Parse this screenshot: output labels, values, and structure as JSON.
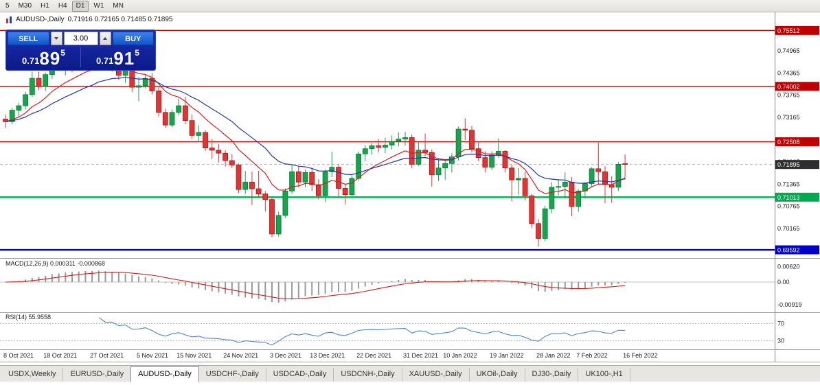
{
  "toolbar": {
    "periods": [
      "5",
      "M30",
      "H1",
      "H4",
      "D1",
      "W1",
      "MN"
    ],
    "active": "D1"
  },
  "title": {
    "symbol": "AUDUSD-,Daily",
    "ohlc": "0.71916 0.72165 0.71485 0.71895"
  },
  "trade_panel": {
    "sell_label": "SELL",
    "buy_label": "BUY",
    "volume": "3.00",
    "sell_price": {
      "small": "0.71",
      "big": "89",
      "sup": "5"
    },
    "buy_price": {
      "small": "0.71",
      "big": "91",
      "sup": "5"
    }
  },
  "tabs": {
    "items": [
      "USDX,Weekly",
      "EURUSD-,Daily",
      "AUDUSD-,Daily",
      "USDCHF-,Daily",
      "USDCAD-,Daily",
      "USDCNH-,Daily",
      "XAUUSD-,Daily",
      "UKOil-,Daily",
      "DJ30-,Daily",
      "UK100-,H1"
    ],
    "active_index": 2
  },
  "chart_data": {
    "type": "candlestick",
    "symbol": "AUDUSD",
    "timeframe": "Daily",
    "up_color": "#18a44c",
    "down_color": "#e13434",
    "price_axis_ticks": [
      "0.74965",
      "0.74365",
      "0.73765",
      "0.73165",
      "0.71965",
      "0.71365",
      "0.70765",
      "0.70165"
    ],
    "price_badges": [
      {
        "value": 0.75512,
        "label": "0.75512",
        "color": "#c00000"
      },
      {
        "value": 0.74002,
        "label": "0.74002",
        "color": "#c00000"
      },
      {
        "value": 0.72508,
        "label": "0.72508",
        "color": "#c00000"
      },
      {
        "value": 0.71895,
        "label": "0.71895",
        "color": "#2f2f2f"
      },
      {
        "value": 0.71013,
        "label": "0.71013",
        "color": "#00a84f"
      },
      {
        "value": 0.69592,
        "label": "0.69592",
        "color": "#0000c8"
      }
    ],
    "hlines": [
      {
        "value": 0.75512,
        "color": "#c00000",
        "w": 1.4
      },
      {
        "value": 0.74002,
        "color": "#c00000",
        "w": 1.4
      },
      {
        "value": 0.72508,
        "color": "#c00000",
        "w": 1.4
      },
      {
        "value": 0.71013,
        "color": "#00b050",
        "w": 2.4
      },
      {
        "value": 0.69592,
        "color": "#0000c8",
        "w": 2.4
      }
    ],
    "bid_price": 0.71895,
    "x_labels": [
      {
        "label": "8 Oct 2021",
        "i": 0
      },
      {
        "label": "18 Oct 2021",
        "i": 6
      },
      {
        "label": "27 Oct 2021",
        "i": 13
      },
      {
        "label": "5 Nov 2021",
        "i": 20
      },
      {
        "label": "15 Nov 2021",
        "i": 26
      },
      {
        "label": "24 Nov 2021",
        "i": 33
      },
      {
        "label": "3 Dec 2021",
        "i": 40
      },
      {
        "label": "13 Dec 2021",
        "i": 46
      },
      {
        "label": "22 Dec 2021",
        "i": 53
      },
      {
        "label": "31 Dec 2021",
        "i": 60
      },
      {
        "label": "10 Jan 2022",
        "i": 66
      },
      {
        "label": "19 Jan 2022",
        "i": 73
      },
      {
        "label": "28 Jan 2022",
        "i": 80
      },
      {
        "label": "7 Feb 2022",
        "i": 86
      },
      {
        "label": "16 Feb 2022",
        "i": 93
      }
    ],
    "candles": [
      [
        0.7312,
        0.7324,
        0.7288,
        0.7305
      ],
      [
        0.7305,
        0.7342,
        0.7298,
        0.7336
      ],
      [
        0.7336,
        0.7356,
        0.7318,
        0.7348
      ],
      [
        0.7348,
        0.7386,
        0.7338,
        0.7378
      ],
      [
        0.7378,
        0.744,
        0.7372,
        0.7422
      ],
      [
        0.7422,
        0.744,
        0.739,
        0.74
      ],
      [
        0.74,
        0.7438,
        0.7388,
        0.7432
      ],
      [
        0.7432,
        0.7475,
        0.742,
        0.7465
      ],
      [
        0.7465,
        0.748,
        0.7442,
        0.7452
      ],
      [
        0.7452,
        0.747,
        0.743,
        0.7464
      ],
      [
        0.7464,
        0.7472,
        0.7438,
        0.7462
      ],
      [
        0.7462,
        0.748,
        0.7448,
        0.7472
      ],
      [
        0.7472,
        0.7492,
        0.7456,
        0.748
      ],
      [
        0.748,
        0.7496,
        0.746,
        0.747
      ],
      [
        0.747,
        0.7512,
        0.7458,
        0.7502
      ],
      [
        0.7502,
        0.7518,
        0.7452,
        0.7462
      ],
      [
        0.7462,
        0.7472,
        0.744,
        0.7466
      ],
      [
        0.7466,
        0.747,
        0.7418,
        0.743
      ],
      [
        0.743,
        0.7455,
        0.741,
        0.7448
      ],
      [
        0.7448,
        0.7452,
        0.7385,
        0.7398
      ],
      [
        0.7398,
        0.7425,
        0.736,
        0.7402
      ],
      [
        0.7402,
        0.7432,
        0.7395,
        0.7422
      ],
      [
        0.7422,
        0.7436,
        0.7378,
        0.7388
      ],
      [
        0.7388,
        0.7398,
        0.7318,
        0.733
      ],
      [
        0.733,
        0.734,
        0.7288,
        0.7296
      ],
      [
        0.7296,
        0.7338,
        0.729,
        0.733
      ],
      [
        0.733,
        0.7368,
        0.7322,
        0.7348
      ],
      [
        0.7348,
        0.7372,
        0.7298,
        0.7308
      ],
      [
        0.7308,
        0.7325,
        0.7258,
        0.7268
      ],
      [
        0.7268,
        0.7296,
        0.725,
        0.7276
      ],
      [
        0.7276,
        0.7282,
        0.7226,
        0.7234
      ],
      [
        0.7234,
        0.7258,
        0.7204,
        0.7228
      ],
      [
        0.7228,
        0.7245,
        0.7195,
        0.722
      ],
      [
        0.722,
        0.7228,
        0.7184,
        0.72
      ],
      [
        0.72,
        0.7218,
        0.718,
        0.7188
      ],
      [
        0.7188,
        0.7192,
        0.7112,
        0.7122
      ],
      [
        0.7122,
        0.7172,
        0.711,
        0.7142
      ],
      [
        0.7142,
        0.717,
        0.708,
        0.7124
      ],
      [
        0.7124,
        0.7172,
        0.71,
        0.711
      ],
      [
        0.711,
        0.7118,
        0.7063,
        0.7095
      ],
      [
        0.7095,
        0.71,
        0.6993,
        0.7002
      ],
      [
        0.7002,
        0.7062,
        0.6995,
        0.7052
      ],
      [
        0.7052,
        0.7125,
        0.7045,
        0.7118
      ],
      [
        0.7118,
        0.7187,
        0.711,
        0.717
      ],
      [
        0.717,
        0.7185,
        0.7128,
        0.7142
      ],
      [
        0.7142,
        0.7176,
        0.7128,
        0.7168
      ],
      [
        0.7168,
        0.718,
        0.7118,
        0.7135
      ],
      [
        0.7135,
        0.715,
        0.7095,
        0.7105
      ],
      [
        0.7105,
        0.7176,
        0.7088,
        0.717
      ],
      [
        0.717,
        0.7224,
        0.7155,
        0.7182
      ],
      [
        0.7182,
        0.719,
        0.71,
        0.7125
      ],
      [
        0.7125,
        0.7135,
        0.7082,
        0.7108
      ],
      [
        0.7108,
        0.716,
        0.71,
        0.7152
      ],
      [
        0.7152,
        0.7225,
        0.7145,
        0.7218
      ],
      [
        0.7218,
        0.7242,
        0.7198,
        0.7232
      ],
      [
        0.7232,
        0.7248,
        0.7216,
        0.724
      ],
      [
        0.724,
        0.7258,
        0.7222,
        0.7236
      ],
      [
        0.7236,
        0.7262,
        0.722,
        0.7242
      ],
      [
        0.7242,
        0.7268,
        0.723,
        0.7252
      ],
      [
        0.7252,
        0.7276,
        0.7238,
        0.7258
      ],
      [
        0.7258,
        0.7278,
        0.724,
        0.7262
      ],
      [
        0.7262,
        0.727,
        0.718,
        0.719
      ],
      [
        0.719,
        0.725,
        0.7185,
        0.7228
      ],
      [
        0.7228,
        0.7273,
        0.7212,
        0.7222
      ],
      [
        0.7222,
        0.723,
        0.713,
        0.7162
      ],
      [
        0.7162,
        0.7207,
        0.7145,
        0.718
      ],
      [
        0.718,
        0.72,
        0.7148,
        0.7192
      ],
      [
        0.7192,
        0.722,
        0.7168,
        0.721
      ],
      [
        0.721,
        0.7292,
        0.72,
        0.7285
      ],
      [
        0.7285,
        0.7314,
        0.7255,
        0.7282
      ],
      [
        0.7282,
        0.7293,
        0.7222,
        0.7232
      ],
      [
        0.7232,
        0.725,
        0.7198,
        0.7208
      ],
      [
        0.7208,
        0.7225,
        0.7168,
        0.7182
      ],
      [
        0.7182,
        0.7225,
        0.7175,
        0.7215
      ],
      [
        0.7215,
        0.726,
        0.7208,
        0.7225
      ],
      [
        0.7225,
        0.7228,
        0.7168,
        0.718
      ],
      [
        0.718,
        0.719,
        0.709,
        0.7148
      ],
      [
        0.7148,
        0.718,
        0.7108,
        0.7152
      ],
      [
        0.7152,
        0.717,
        0.7093,
        0.7105
      ],
      [
        0.7105,
        0.711,
        0.7018,
        0.703
      ],
      [
        0.703,
        0.7042,
        0.6968,
        0.699
      ],
      [
        0.699,
        0.7078,
        0.6982,
        0.707
      ],
      [
        0.707,
        0.7142,
        0.7058,
        0.7128
      ],
      [
        0.7128,
        0.715,
        0.7106,
        0.713
      ],
      [
        0.713,
        0.7168,
        0.7098,
        0.7142
      ],
      [
        0.7142,
        0.7155,
        0.705,
        0.7076
      ],
      [
        0.7076,
        0.7122,
        0.7062,
        0.7118
      ],
      [
        0.7118,
        0.7142,
        0.7098,
        0.7138
      ],
      [
        0.7138,
        0.7182,
        0.7128,
        0.7178
      ],
      [
        0.7178,
        0.7249,
        0.7135,
        0.717
      ],
      [
        0.717,
        0.7185,
        0.7085,
        0.7135
      ],
      [
        0.7135,
        0.7158,
        0.7086,
        0.7128
      ],
      [
        0.7128,
        0.7196,
        0.7118,
        0.719
      ],
      [
        0.71916,
        0.72165,
        0.71485,
        0.71895
      ]
    ],
    "ma": [
      {
        "period": 10,
        "color": "#d02020"
      },
      {
        "period": 21,
        "color": "#2038a8"
      }
    ],
    "macd": {
      "label": "MACD(12,26,9) 0.000311 -0.000868",
      "hist_color": "#9a9a9a",
      "signal_color": "#c82020",
      "axis_labels": [
        {
          "text": "0.00620",
          "value": 0.0062
        },
        {
          "text": "0.00",
          "value": 0
        },
        {
          "text": "-0.00919",
          "value": -0.00919
        }
      ]
    },
    "rsi": {
      "label": "RSI(14) 55.9558",
      "value": 55.9558,
      "color": "#4f86c0",
      "levels": [
        {
          "text": "70",
          "value": 70
        },
        {
          "text": "30",
          "value": 30
        }
      ]
    }
  }
}
